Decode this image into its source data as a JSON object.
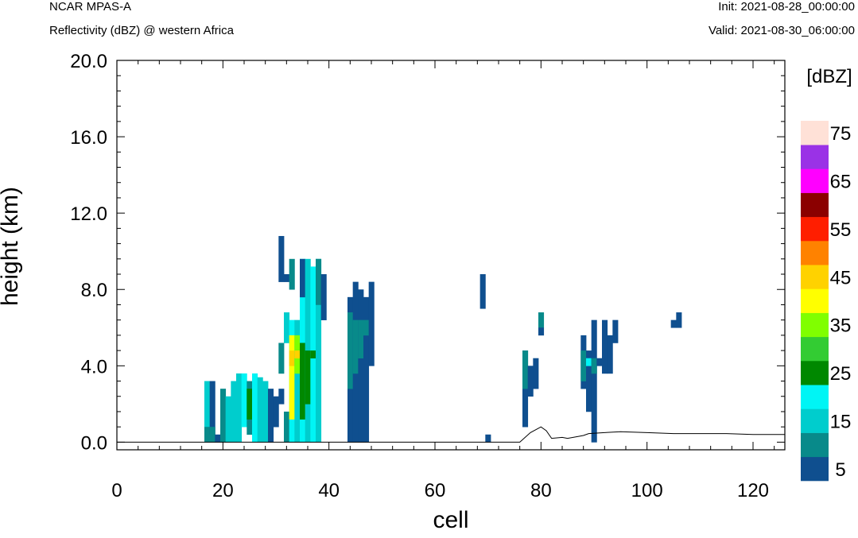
{
  "header": {
    "model": "NCAR MPAS-A",
    "field": "Reflectivity (dBZ) @ western Africa",
    "init": "Init: 2021-08-28_00:00:00",
    "valid": "Valid: 2021-08-30_06:00:00"
  },
  "chart_data": {
    "type": "heatmap",
    "xlabel": "cell",
    "ylabel": "height (km)",
    "xlim": [
      0,
      126
    ],
    "ylim": [
      -0.4,
      20.0
    ],
    "xticks": [
      "0",
      "20",
      "40",
      "60",
      "80",
      "100",
      "120"
    ],
    "yticks": [
      "0.0",
      "4.0",
      "8.0",
      "12.0",
      "16.0",
      "20.0"
    ],
    "colorbar": {
      "title": "[dBZ]",
      "levels": [
        5,
        10,
        15,
        20,
        25,
        30,
        35,
        40,
        45,
        50,
        55,
        60,
        65,
        70,
        75
      ],
      "labels": [
        "5",
        "15",
        "25",
        "35",
        "45",
        "55",
        "65",
        "75"
      ],
      "colors": [
        "#0f4f8f",
        "#088a8a",
        "#00cdcd",
        "#00f5f5",
        "#008800",
        "#33cc33",
        "#80ff00",
        "#ffff00",
        "#ffd200",
        "#ff8200",
        "#ff1e00",
        "#8b0000",
        "#ff00ff",
        "#9a32e6",
        "#ffe1d7"
      ]
    },
    "cell_width": 1,
    "cell_height_km": 0.4,
    "cells": [
      [
        17,
        0.0,
        3.2,
        "#00cdcd"
      ],
      [
        17,
        0.0,
        0.8,
        "#088a8a"
      ],
      [
        18,
        0.4,
        3.2,
        "#0f4f8f"
      ],
      [
        18,
        0.0,
        0.8,
        "#088a8a"
      ],
      [
        19,
        0.0,
        0.4,
        "#0f4f8f"
      ],
      [
        20,
        0.0,
        2.8,
        "#088a8a"
      ],
      [
        21,
        0.0,
        2.4,
        "#00cdcd"
      ],
      [
        22,
        0.0,
        3.2,
        "#00cdcd"
      ],
      [
        23,
        0.0,
        3.6,
        "#00cdcd"
      ],
      [
        24,
        0.8,
        3.6,
        "#00f5f5"
      ],
      [
        25,
        0.4,
        3.2,
        "#088a8a"
      ],
      [
        25,
        1.2,
        2.8,
        "#008800"
      ],
      [
        26,
        0.0,
        3.6,
        "#00f5f5"
      ],
      [
        27,
        0.0,
        3.4,
        "#00cdcd"
      ],
      [
        28,
        0.0,
        3.2,
        "#00cdcd"
      ],
      [
        29,
        0.0,
        2.8,
        "#0f4f8f"
      ],
      [
        30,
        0.8,
        2.4,
        "#0f4f8f"
      ],
      [
        31,
        2.0,
        2.8,
        "#0f4f8f"
      ],
      [
        31,
        8.4,
        10.8,
        "#0f4f8f"
      ],
      [
        31,
        3.6,
        5.2,
        "#088a8a"
      ],
      [
        32,
        0.0,
        1.6,
        "#088a8a"
      ],
      [
        32,
        5.2,
        6.8,
        "#00cdcd"
      ],
      [
        32,
        8.4,
        8.8,
        "#0f4f8f"
      ],
      [
        33,
        0.0,
        6.4,
        "#00f5f5"
      ],
      [
        33,
        1.2,
        5.6,
        "#ffff00"
      ],
      [
        33,
        4.0,
        4.8,
        "#ffd200"
      ],
      [
        33,
        8.0,
        9.6,
        "#088a8a"
      ],
      [
        34,
        0.0,
        6.4,
        "#00cdcd"
      ],
      [
        34,
        3.6,
        5.6,
        "#80ff00"
      ],
      [
        34,
        4.4,
        4.8,
        "#ffd200"
      ],
      [
        35,
        0.0,
        9.6,
        "#00f5f5"
      ],
      [
        35,
        1.2,
        5.2,
        "#008800"
      ],
      [
        35,
        7.6,
        9.6,
        "#0f4f8f"
      ],
      [
        36,
        0.0,
        9.6,
        "#00cdcd"
      ],
      [
        36,
        2.0,
        4.8,
        "#008800"
      ],
      [
        37,
        0.0,
        9.2,
        "#00f5f5"
      ],
      [
        37,
        4.4,
        4.8,
        "#008800"
      ],
      [
        38,
        0.0,
        9.6,
        "#00cdcd"
      ],
      [
        38,
        7.2,
        9.6,
        "#088a8a"
      ],
      [
        39,
        6.4,
        8.8,
        "#0f4f8f"
      ],
      [
        44,
        0.0,
        7.6,
        "#0f4f8f"
      ],
      [
        44,
        2.8,
        6.8,
        "#088a8a"
      ],
      [
        45,
        0.0,
        8.4,
        "#0f4f8f"
      ],
      [
        45,
        3.6,
        6.4,
        "#088a8a"
      ],
      [
        46,
        0.0,
        8.0,
        "#0f4f8f"
      ],
      [
        46,
        4.4,
        6.4,
        "#088a8a"
      ],
      [
        47,
        0.0,
        7.6,
        "#0f4f8f"
      ],
      [
        47,
        5.6,
        6.4,
        "#088a8a"
      ],
      [
        48,
        4.0,
        8.4,
        "#0f4f8f"
      ],
      [
        69,
        7.0,
        8.8,
        "#0f4f8f"
      ],
      [
        70,
        0.0,
        0.4,
        "#0f4f8f"
      ],
      [
        77,
        0.8,
        4.8,
        "#0f4f8f"
      ],
      [
        77,
        2.8,
        4.8,
        "#088a8a"
      ],
      [
        78,
        2.4,
        4.0,
        "#0f4f8f"
      ],
      [
        79,
        2.8,
        4.4,
        "#0f4f8f"
      ],
      [
        80,
        6.0,
        6.8,
        "#088a8a"
      ],
      [
        80,
        5.6,
        6.0,
        "#0f4f8f"
      ],
      [
        88,
        2.8,
        5.6,
        "#0f4f8f"
      ],
      [
        88,
        3.2,
        4.8,
        "#088a8a"
      ],
      [
        89,
        1.6,
        4.8,
        "#0f4f8f"
      ],
      [
        89,
        4.0,
        4.4,
        "#00f5f5"
      ],
      [
        90,
        0.0,
        6.4,
        "#0f4f8f"
      ],
      [
        90,
        3.6,
        4.4,
        "#088a8a"
      ],
      [
        91,
        4.0,
        4.4,
        "#0f4f8f"
      ],
      [
        92,
        3.6,
        6.4,
        "#0f4f8f"
      ],
      [
        93,
        3.6,
        5.6,
        "#0f4f8f"
      ],
      [
        94,
        5.2,
        6.4,
        "#0f4f8f"
      ],
      [
        105,
        6.0,
        6.4,
        "#0f4f8f"
      ],
      [
        106,
        6.0,
        6.8,
        "#0f4f8f"
      ]
    ],
    "terrain": [
      [
        0,
        0.0
      ],
      [
        76,
        0.0
      ],
      [
        78,
        0.5
      ],
      [
        80,
        0.8
      ],
      [
        81,
        0.6
      ],
      [
        82,
        0.2
      ],
      [
        84,
        0.25
      ],
      [
        85,
        0.2
      ],
      [
        87,
        0.3
      ],
      [
        88,
        0.35
      ],
      [
        89,
        0.45
      ],
      [
        92,
        0.5
      ],
      [
        95,
        0.55
      ],
      [
        100,
        0.5
      ],
      [
        105,
        0.45
      ],
      [
        110,
        0.45
      ],
      [
        115,
        0.45
      ],
      [
        120,
        0.4
      ],
      [
        126,
        0.4
      ]
    ]
  }
}
